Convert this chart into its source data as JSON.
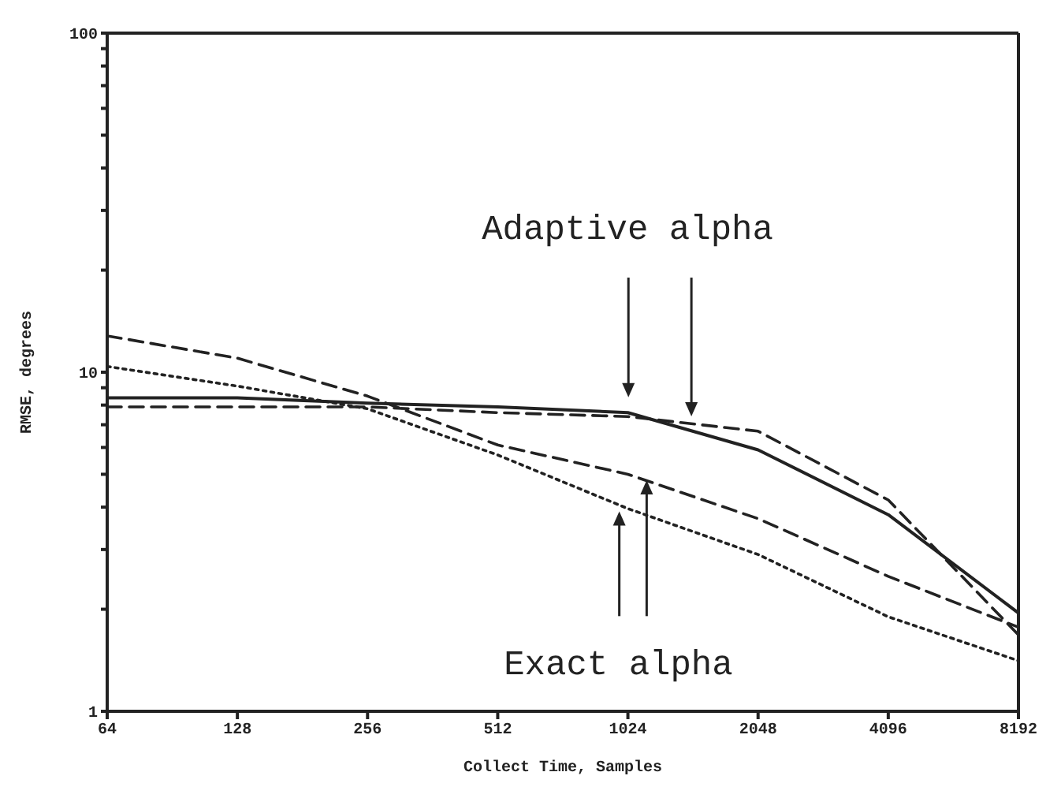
{
  "chart_data": {
    "type": "line",
    "xlabel": "Collect Time, Samples",
    "ylabel": "RMSE, degrees",
    "x": [
      64,
      128,
      256,
      512,
      1024,
      2048,
      4096,
      8192
    ],
    "series": [
      {
        "color": "#222222",
        "line_style": "solid",
        "values": [
          8.4,
          8.4,
          8.1,
          7.9,
          7.6,
          5.9,
          3.8,
          1.95
        ]
      },
      {
        "color": "#222222",
        "line_style": "dashed",
        "values": [
          7.9,
          7.9,
          7.9,
          7.6,
          7.4,
          6.7,
          4.2,
          1.68
        ]
      },
      {
        "color": "#222222",
        "line_style": "dashed",
        "values": [
          12.8,
          11.0,
          8.5,
          6.1,
          5.0,
          3.7,
          2.5,
          1.77
        ]
      },
      {
        "color": "#222222",
        "line_style": "dotted",
        "values": [
          10.4,
          9.1,
          7.8,
          5.7,
          3.96,
          2.9,
          1.9,
          1.41
        ]
      }
    ],
    "log": "xy",
    "xlim": [
      64,
      8192
    ],
    "xticks": [
      64,
      128,
      256,
      512,
      1024,
      2048,
      4096,
      8192
    ],
    "ylim": [
      1,
      100
    ],
    "yticks": [
      1,
      {
        "value": 2,
        "label": null
      },
      {
        "value": 3,
        "label": null
      },
      {
        "value": 4,
        "label": null
      },
      {
        "value": 5,
        "label": null
      },
      {
        "value": 6,
        "label": null
      },
      {
        "value": 7,
        "label": null
      },
      {
        "value": 8,
        "label": null
      },
      {
        "value": 9,
        "label": null
      },
      10,
      {
        "value": 20,
        "label": null
      },
      {
        "value": 30,
        "label": null
      },
      {
        "value": 40,
        "label": null
      },
      {
        "value": 50,
        "label": null
      },
      {
        "value": 60,
        "label": null
      },
      {
        "value": 70,
        "label": null
      },
      {
        "value": 80,
        "label": null
      },
      {
        "value": 90,
        "label": null
      },
      100
    ],
    "marker": "none",
    "annotations": [
      "Adaptive alpha",
      "Exact alpha"
    ]
  }
}
